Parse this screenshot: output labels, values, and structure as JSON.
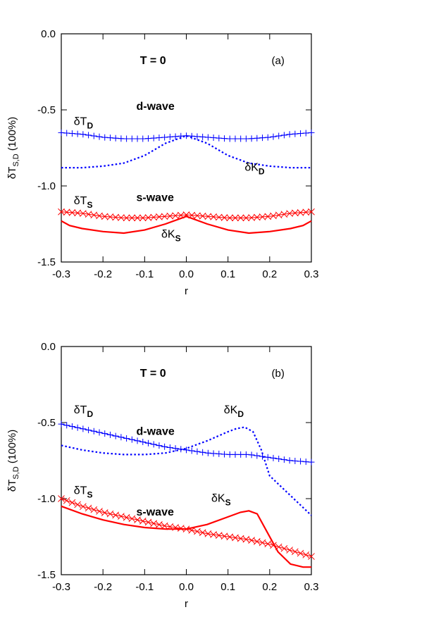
{
  "chart_data": [
    {
      "type": "line",
      "panel_label": "(a)",
      "annotation": "T =  0",
      "xlabel": "r",
      "ylabel": "δT",
      "ylabel_sub": "S,D",
      "ylabel_suffix": " (100%)",
      "xlim": [
        -0.3,
        0.3
      ],
      "ylim": [
        -1.5,
        0.0
      ],
      "xticks": [
        -0.3,
        -0.2,
        -0.1,
        0.0,
        0.1,
        0.2,
        0.3
      ],
      "xtick_labels": [
        "-0.3",
        "-0.2",
        "-0.1",
        "0.0",
        "0.1",
        "0.2",
        "0.3"
      ],
      "yticks": [
        -1.5,
        -1.0,
        -0.5,
        0.0
      ],
      "ytick_labels": [
        "-1.5",
        "-1.0",
        "-0.5",
        "0.0"
      ],
      "grid": false,
      "text_labels": [
        {
          "main": "δT",
          "sub": "D",
          "x": -0.27,
          "y": -0.6
        },
        {
          "main": "d-wave",
          "sub": "",
          "x": -0.12,
          "y": -0.5,
          "bold": true
        },
        {
          "main": "δK",
          "sub": "D",
          "x": 0.14,
          "y": -0.9
        },
        {
          "main": "δT",
          "sub": "S",
          "x": -0.27,
          "y": -1.12
        },
        {
          "main": "s-wave",
          "sub": "",
          "x": -0.12,
          "y": -1.1,
          "bold": true
        },
        {
          "main": "δK",
          "sub": "S",
          "x": -0.06,
          "y": -1.34
        }
      ],
      "series": [
        {
          "color": "#0000ff",
          "style": "plus-line",
          "x": [
            -0.3,
            -0.25,
            -0.2,
            -0.15,
            -0.1,
            -0.05,
            0.0,
            0.05,
            0.1,
            0.15,
            0.2,
            0.25,
            0.3
          ],
          "y": [
            -0.65,
            -0.66,
            -0.68,
            -0.69,
            -0.69,
            -0.68,
            -0.67,
            -0.68,
            -0.69,
            -0.69,
            -0.68,
            -0.66,
            -0.65
          ]
        },
        {
          "color": "#0000ff",
          "style": "dotted",
          "x": [
            -0.3,
            -0.25,
            -0.2,
            -0.15,
            -0.1,
            -0.05,
            0.0,
            0.05,
            0.1,
            0.15,
            0.2,
            0.25,
            0.3
          ],
          "y": [
            -0.88,
            -0.88,
            -0.87,
            -0.85,
            -0.8,
            -0.72,
            -0.67,
            -0.72,
            -0.8,
            -0.85,
            -0.87,
            -0.88,
            -0.88
          ]
        },
        {
          "color": "#ff0000",
          "style": "x-line",
          "x": [
            -0.3,
            -0.25,
            -0.2,
            -0.15,
            -0.1,
            -0.05,
            0.0,
            0.05,
            0.1,
            0.15,
            0.2,
            0.25,
            0.3
          ],
          "y": [
            -1.17,
            -1.18,
            -1.2,
            -1.21,
            -1.21,
            -1.2,
            -1.19,
            -1.2,
            -1.21,
            -1.21,
            -1.2,
            -1.18,
            -1.17
          ]
        },
        {
          "color": "#ff0000",
          "style": "solid",
          "x": [
            -0.3,
            -0.28,
            -0.25,
            -0.2,
            -0.15,
            -0.1,
            -0.05,
            0.0,
            0.05,
            0.1,
            0.15,
            0.2,
            0.25,
            0.28,
            0.3
          ],
          "y": [
            -1.23,
            -1.26,
            -1.28,
            -1.3,
            -1.31,
            -1.29,
            -1.25,
            -1.2,
            -1.25,
            -1.29,
            -1.31,
            -1.3,
            -1.28,
            -1.26,
            -1.23
          ]
        }
      ]
    },
    {
      "type": "line",
      "panel_label": "(b)",
      "annotation": "T =  0",
      "xlabel": "r",
      "ylabel": "δT",
      "ylabel_sub": "S,D",
      "ylabel_suffix": " (100%)",
      "xlim": [
        -0.3,
        0.3
      ],
      "ylim": [
        -1.5,
        0.0
      ],
      "xticks": [
        -0.3,
        -0.2,
        -0.1,
        0.0,
        0.1,
        0.2,
        0.3
      ],
      "xtick_labels": [
        "-0.3",
        "-0.2",
        "-0.1",
        "0.0",
        "0.1",
        "0.2",
        "0.3"
      ],
      "yticks": [
        -1.5,
        -1.0,
        -0.5,
        0.0
      ],
      "ytick_labels": [
        "-1.5",
        "-1.0",
        "-0.5",
        "0.0"
      ],
      "grid": false,
      "text_labels": [
        {
          "main": "δT",
          "sub": "D",
          "x": -0.27,
          "y": -0.44
        },
        {
          "main": "d-wave",
          "sub": "",
          "x": -0.12,
          "y": -0.58,
          "bold": true
        },
        {
          "main": "δK",
          "sub": "D",
          "x": 0.09,
          "y": -0.44
        },
        {
          "main": "δT",
          "sub": "S",
          "x": -0.27,
          "y": -0.97
        },
        {
          "main": "s-wave",
          "sub": "",
          "x": -0.12,
          "y": -1.11,
          "bold": true
        },
        {
          "main": "δK",
          "sub": "S",
          "x": 0.06,
          "y": -1.02
        }
      ],
      "series": [
        {
          "color": "#0000ff",
          "style": "plus-line",
          "x": [
            -0.3,
            -0.25,
            -0.2,
            -0.15,
            -0.1,
            -0.05,
            0.0,
            0.05,
            0.1,
            0.15,
            0.2,
            0.25,
            0.3
          ],
          "y": [
            -0.51,
            -0.54,
            -0.57,
            -0.6,
            -0.63,
            -0.66,
            -0.68,
            -0.7,
            -0.71,
            -0.71,
            -0.73,
            -0.75,
            -0.76
          ]
        },
        {
          "color": "#0000ff",
          "style": "dotted",
          "x": [
            -0.3,
            -0.25,
            -0.2,
            -0.15,
            -0.1,
            -0.05,
            0.0,
            0.05,
            0.1,
            0.12,
            0.14,
            0.16,
            0.18,
            0.2,
            0.25,
            0.3
          ],
          "y": [
            -0.65,
            -0.68,
            -0.7,
            -0.71,
            -0.71,
            -0.7,
            -0.67,
            -0.62,
            -0.56,
            -0.54,
            -0.53,
            -0.56,
            -0.68,
            -0.85,
            -0.98,
            -1.11
          ]
        },
        {
          "color": "#ff0000",
          "style": "x-line",
          "x": [
            -0.3,
            -0.25,
            -0.2,
            -0.15,
            -0.1,
            -0.05,
            0.0,
            0.05,
            0.1,
            0.15,
            0.2,
            0.25,
            0.3
          ],
          "y": [
            -1.0,
            -1.05,
            -1.09,
            -1.12,
            -1.15,
            -1.18,
            -1.2,
            -1.23,
            -1.25,
            -1.27,
            -1.3,
            -1.34,
            -1.38
          ]
        },
        {
          "color": "#ff0000",
          "style": "solid",
          "x": [
            -0.3,
            -0.25,
            -0.2,
            -0.15,
            -0.1,
            -0.05,
            0.0,
            0.05,
            0.1,
            0.13,
            0.15,
            0.17,
            0.2,
            0.22,
            0.25,
            0.28,
            0.3
          ],
          "y": [
            -1.05,
            -1.1,
            -1.14,
            -1.17,
            -1.19,
            -1.2,
            -1.2,
            -1.17,
            -1.12,
            -1.09,
            -1.08,
            -1.1,
            -1.25,
            -1.35,
            -1.43,
            -1.45,
            -1.45
          ]
        }
      ]
    }
  ]
}
